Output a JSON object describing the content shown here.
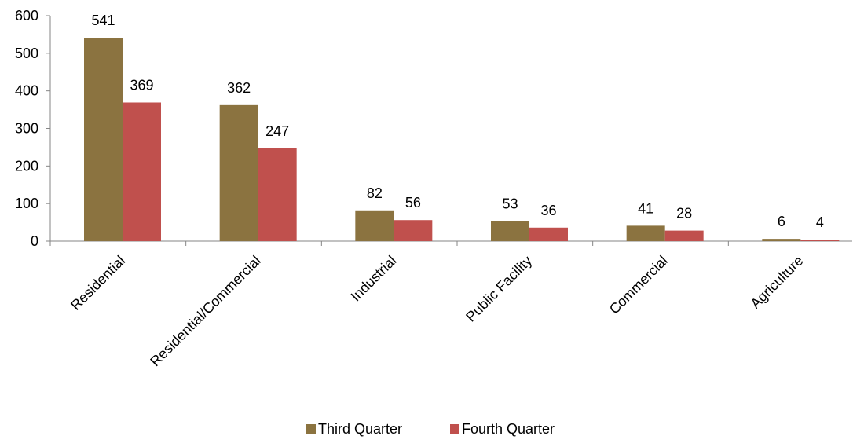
{
  "chart_data": {
    "type": "bar",
    "title": "",
    "xlabel": "",
    "ylabel": "",
    "categories": [
      "Residential",
      "Residential/Commercial",
      "Industrial",
      "Public Facility",
      "Commercial",
      "Agriculture"
    ],
    "series": [
      {
        "name": "Third Quarter",
        "color": "#8b7340",
        "values": [
          541,
          362,
          82,
          53,
          41,
          6
        ]
      },
      {
        "name": "Fourth  Quarter",
        "color": "#c0504d",
        "values": [
          369,
          247,
          56,
          36,
          28,
          4
        ]
      }
    ],
    "ylim": [
      0,
      600
    ],
    "yticks": [
      0,
      100,
      200,
      300,
      400,
      500,
      600
    ],
    "grid": false,
    "legend": "bottom",
    "data_labels": true
  }
}
